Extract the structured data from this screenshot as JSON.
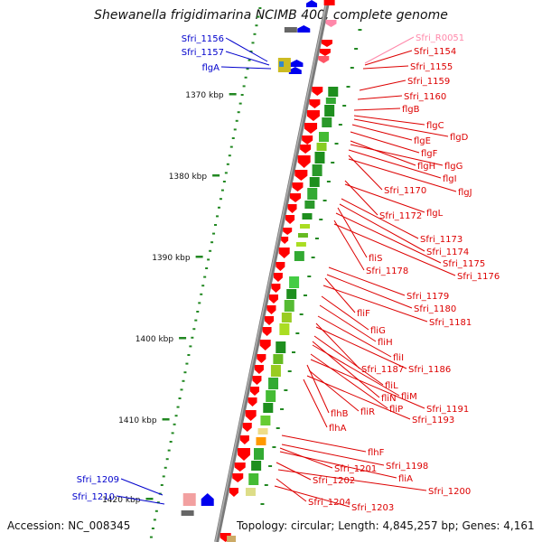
{
  "title": "Shewanella frigidimarina NCIMB 400, complete genome",
  "footer": {
    "accession": "Accession: NC_008345",
    "summary": "Topology: circular; Length: 4,845,257 bp; Genes: 4,161"
  },
  "scale_ticks": [
    "1370 kbp",
    "1380 kbp",
    "1390 kbp",
    "1400 kbp",
    "1410 kbp",
    "1420 kbp"
  ],
  "colors": {
    "forward_gene": "#ff0000",
    "reverse_gene": "#0000ee",
    "rna_gene": "#ff88aa",
    "backbone": "#888888",
    "scale_marks": "#228822",
    "orthology_dark": "#1e8f1e",
    "orthology_light": "#aadd22",
    "orthology_orange": "#ff9900"
  },
  "labels_left": [
    {
      "text": "Sfri_1156",
      "color": "#0000cc"
    },
    {
      "text": "Sfri_1157",
      "color": "#0000cc"
    },
    {
      "text": "flgA",
      "color": "#0000cc"
    },
    {
      "text": "Sfri_1209",
      "color": "#0000cc"
    },
    {
      "text": "Sfri_1210",
      "color": "#0000cc"
    }
  ],
  "labels_right": [
    {
      "text": "Sfri_R0051",
      "color": "#ff88aa"
    },
    {
      "text": "Sfri_1154",
      "color": "#dd0000"
    },
    {
      "text": "Sfri_1155",
      "color": "#dd0000"
    },
    {
      "text": "Sfri_1159",
      "color": "#dd0000"
    },
    {
      "text": "Sfri_1160",
      "color": "#dd0000"
    },
    {
      "text": "flgB",
      "color": "#dd0000"
    },
    {
      "text": "flgC",
      "color": "#dd0000"
    },
    {
      "text": "flgD",
      "color": "#dd0000"
    },
    {
      "text": "flgE",
      "color": "#dd0000"
    },
    {
      "text": "flgF",
      "color": "#dd0000"
    },
    {
      "text": "flgH",
      "color": "#dd0000"
    },
    {
      "text": "flgG",
      "color": "#dd0000"
    },
    {
      "text": "flgI",
      "color": "#dd0000"
    },
    {
      "text": "Sfri_1170",
      "color": "#dd0000"
    },
    {
      "text": "flgJ",
      "color": "#dd0000"
    },
    {
      "text": "Sfri_1172",
      "color": "#dd0000"
    },
    {
      "text": "flgL",
      "color": "#dd0000"
    },
    {
      "text": "Sfri_1173",
      "color": "#dd0000"
    },
    {
      "text": "Sfri_1174",
      "color": "#dd0000"
    },
    {
      "text": "fliS",
      "color": "#dd0000"
    },
    {
      "text": "Sfri_1175",
      "color": "#dd0000"
    },
    {
      "text": "Sfri_1178",
      "color": "#dd0000"
    },
    {
      "text": "Sfri_1176",
      "color": "#dd0000"
    },
    {
      "text": "Sfri_1179",
      "color": "#dd0000"
    },
    {
      "text": "Sfri_1180",
      "color": "#dd0000"
    },
    {
      "text": "fliF",
      "color": "#dd0000"
    },
    {
      "text": "Sfri_1181",
      "color": "#dd0000"
    },
    {
      "text": "fliG",
      "color": "#dd0000"
    },
    {
      "text": "fliH",
      "color": "#dd0000"
    },
    {
      "text": "fliI",
      "color": "#dd0000"
    },
    {
      "text": "Sfri_1187",
      "color": "#dd0000"
    },
    {
      "text": "Sfri_1186",
      "color": "#dd0000"
    },
    {
      "text": "fliL",
      "color": "#dd0000"
    },
    {
      "text": "fliN",
      "color": "#dd0000"
    },
    {
      "text": "fliM",
      "color": "#dd0000"
    },
    {
      "text": "fliP",
      "color": "#dd0000"
    },
    {
      "text": "Sfri_1191",
      "color": "#dd0000"
    },
    {
      "text": "flhB",
      "color": "#dd0000"
    },
    {
      "text": "fliR",
      "color": "#dd0000"
    },
    {
      "text": "Sfri_1193",
      "color": "#dd0000"
    },
    {
      "text": "flhA",
      "color": "#dd0000"
    },
    {
      "text": "flhF",
      "color": "#dd0000"
    },
    {
      "text": "Sfri_1198",
      "color": "#dd0000"
    },
    {
      "text": "Sfri_1201",
      "color": "#dd0000"
    },
    {
      "text": "fliA",
      "color": "#dd0000"
    },
    {
      "text": "Sfri_1202",
      "color": "#dd0000"
    },
    {
      "text": "Sfri_1200",
      "color": "#dd0000"
    },
    {
      "text": "Sfri_1204",
      "color": "#dd0000"
    },
    {
      "text": "Sfri_1203",
      "color": "#dd0000"
    }
  ]
}
